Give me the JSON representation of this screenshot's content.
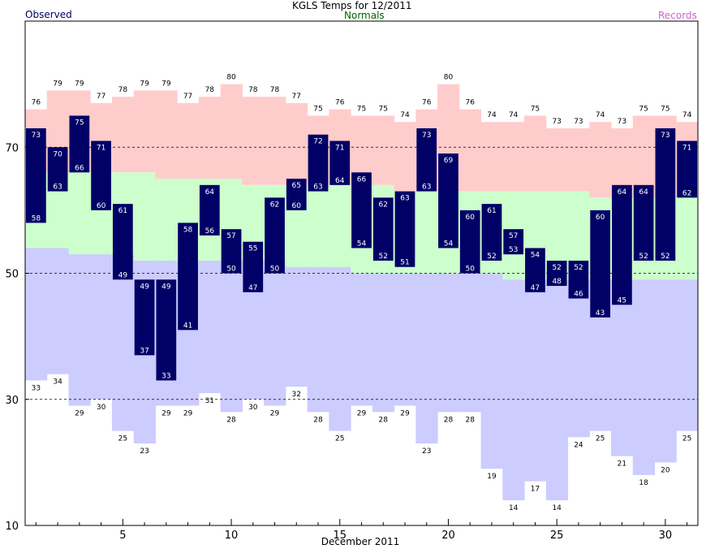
{
  "header": {
    "title": "KGLS Temps for 12/2011",
    "observed_label": "Observed",
    "normals_label": "Normals",
    "records_label": "Records"
  },
  "colors": {
    "observed": "#000066",
    "normals_text": "#006600",
    "records_text": "#cc66cc",
    "record_high_band": "#ffcccc",
    "normal_band": "#ccffcc",
    "record_low_band": "#ccccff"
  },
  "chart_data": {
    "type": "bar",
    "xlabel": "December 2011",
    "ylabel": "",
    "ylim": [
      10,
      90
    ],
    "xlim": [
      1,
      31
    ],
    "yticks": [
      10,
      30,
      50,
      70
    ],
    "xticks": [
      5,
      10,
      15,
      20,
      25,
      30
    ],
    "grid": "dashed at 30, 50, 70",
    "days": [
      1,
      2,
      3,
      4,
      5,
      6,
      7,
      8,
      9,
      10,
      11,
      12,
      13,
      14,
      15,
      16,
      17,
      18,
      19,
      20,
      21,
      22,
      23,
      24,
      25,
      26,
      27,
      28,
      29,
      30,
      31
    ],
    "observed_high": [
      73,
      70,
      75,
      71,
      61,
      49,
      49,
      58,
      64,
      57,
      55,
      62,
      65,
      72,
      71,
      66,
      62,
      63,
      73,
      69,
      60,
      61,
      57,
      54,
      52,
      52,
      60,
      64,
      64,
      73,
      71
    ],
    "observed_low": [
      58,
      63,
      66,
      60,
      49,
      37,
      33,
      41,
      56,
      50,
      47,
      50,
      60,
      63,
      64,
      54,
      52,
      51,
      63,
      54,
      50,
      52,
      53,
      47,
      48,
      46,
      43,
      45,
      52,
      52,
      62
    ],
    "record_high": [
      76,
      79,
      79,
      77,
      78,
      79,
      79,
      77,
      78,
      80,
      78,
      78,
      77,
      75,
      76,
      75,
      75,
      74,
      76,
      80,
      76,
      74,
      74,
      75,
      73,
      73,
      74,
      73,
      75,
      75,
      74
    ],
    "record_low": [
      33,
      34,
      29,
      30,
      25,
      23,
      29,
      29,
      31,
      28,
      30,
      29,
      32,
      28,
      25,
      29,
      28,
      29,
      23,
      28,
      28,
      19,
      14,
      17,
      14,
      24,
      25,
      21,
      18,
      20,
      25
    ],
    "normal_high": [
      66,
      66,
      66,
      66,
      66,
      66,
      65,
      65,
      65,
      65,
      64,
      64,
      64,
      64,
      64,
      64,
      64,
      63,
      63,
      63,
      63,
      63,
      63,
      63,
      63,
      63,
      62,
      62,
      62,
      62,
      62
    ],
    "normal_low": [
      54,
      54,
      53,
      53,
      53,
      52,
      52,
      52,
      52,
      52,
      52,
      52,
      51,
      51,
      51,
      50,
      50,
      50,
      50,
      50,
      50,
      50,
      49,
      49,
      49,
      49,
      49,
      49,
      49,
      49,
      49
    ]
  }
}
